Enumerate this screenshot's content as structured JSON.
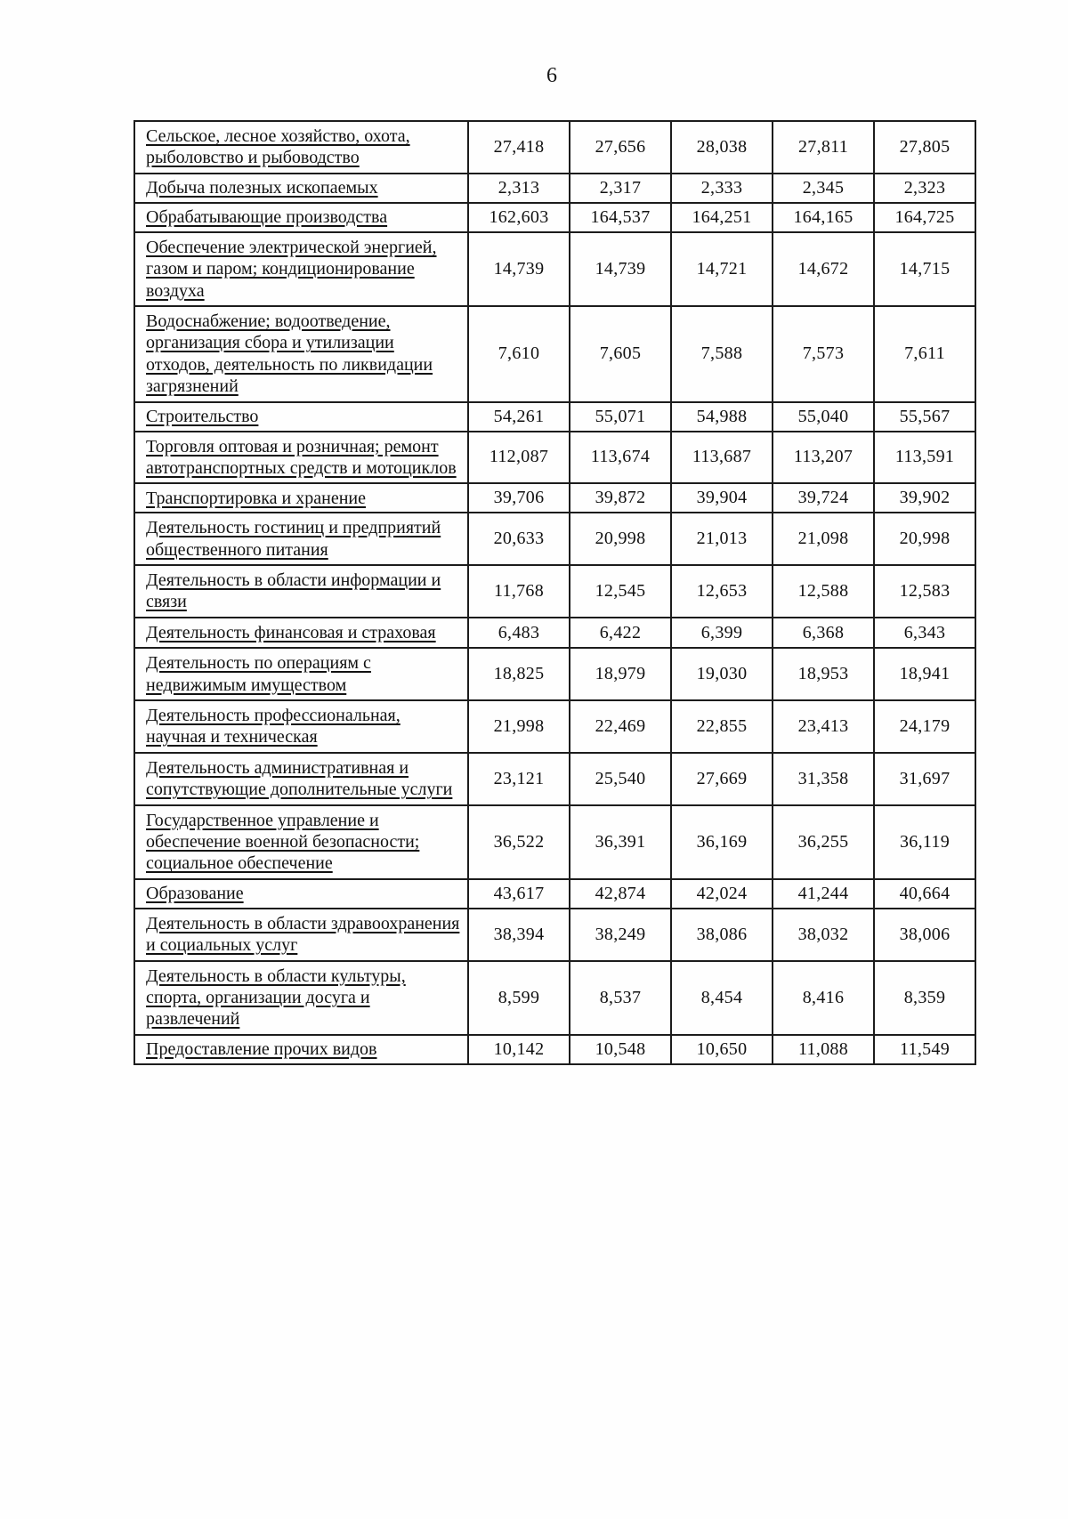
{
  "page": {
    "number": "6"
  },
  "table": {
    "rows": [
      {
        "label": "Сельское, лесное хозяйство, охота, рыболовство и рыбоводство",
        "values": [
          "27,418",
          "27,656",
          "28,038",
          "27,811",
          "27,805"
        ]
      },
      {
        "label": "Добыча полезных ископаемых",
        "values": [
          "2,313",
          "2,317",
          "2,333",
          "2,345",
          "2,323"
        ]
      },
      {
        "label": "Обрабатывающие производства",
        "values": [
          "162,603",
          "164,537",
          "164,251",
          "164,165",
          "164,725"
        ]
      },
      {
        "label": "Обеспечение электрической энергией, газом и паром; кондиционирование воздуха",
        "values": [
          "14,739",
          "14,739",
          "14,721",
          "14,672",
          "14,715"
        ]
      },
      {
        "label": "Водоснабжение; водоотведение, организация сбора и утилизации отходов, деятельность по ликвидации загрязнений",
        "values": [
          "7,610",
          "7,605",
          "7,588",
          "7,573",
          "7,611"
        ]
      },
      {
        "label": "Строительство",
        "values": [
          "54,261",
          "55,071",
          "54,988",
          "55,040",
          "55,567"
        ]
      },
      {
        "label": "Торговля оптовая и розничная; ремонт автотранспортных средств и мотоциклов",
        "values": [
          "112,087",
          "113,674",
          "113,687",
          "113,207",
          "113,591"
        ]
      },
      {
        "label": "Транспортировка и хранение",
        "values": [
          "39,706",
          "39,872",
          "39,904",
          "39,724",
          "39,902"
        ]
      },
      {
        "label": "Деятельность гостиниц и предприятий общественного питания",
        "values": [
          "20,633",
          "20,998",
          "21,013",
          "21,098",
          "20,998"
        ]
      },
      {
        "label": "Деятельность в области информации и связи",
        "values": [
          "11,768",
          "12,545",
          "12,653",
          "12,588",
          "12,583"
        ]
      },
      {
        "label": "Деятельность финансовая и страховая",
        "values": [
          "6,483",
          "6,422",
          "6,399",
          "6,368",
          "6,343"
        ]
      },
      {
        "label": "Деятельность по операциям с недвижимым имуществом",
        "values": [
          "18,825",
          "18,979",
          "19,030",
          "18,953",
          "18,941"
        ]
      },
      {
        "label": "Деятельность профессиональная, научная и техническая",
        "values": [
          "21,998",
          "22,469",
          "22,855",
          "23,413",
          "24,179"
        ]
      },
      {
        "label": "Деятельность административная и сопутствующие дополнительные услуги",
        "values": [
          "23,121",
          "25,540",
          "27,669",
          "31,358",
          "31,697"
        ]
      },
      {
        "label": "Государственное управление и обеспечение военной безопасности; социальное обеспечение",
        "values": [
          "36,522",
          "36,391",
          "36,169",
          "36,255",
          "36,119"
        ]
      },
      {
        "label": "Образование",
        "values": [
          "43,617",
          "42,874",
          "42,024",
          "41,244",
          "40,664"
        ]
      },
      {
        "label": "Деятельность в области здравоохранения и социальных услуг",
        "values": [
          "38,394",
          "38,249",
          "38,086",
          "38,032",
          "38,006"
        ]
      },
      {
        "label": "Деятельность в области культуры, спорта, организации досуга и развлечений",
        "values": [
          "8,599",
          "8,537",
          "8,454",
          "8,416",
          "8,359"
        ]
      },
      {
        "label": "Предоставление прочих видов",
        "values": [
          "10,142",
          "10,548",
          "10,650",
          "11,088",
          "11,549"
        ]
      }
    ]
  }
}
